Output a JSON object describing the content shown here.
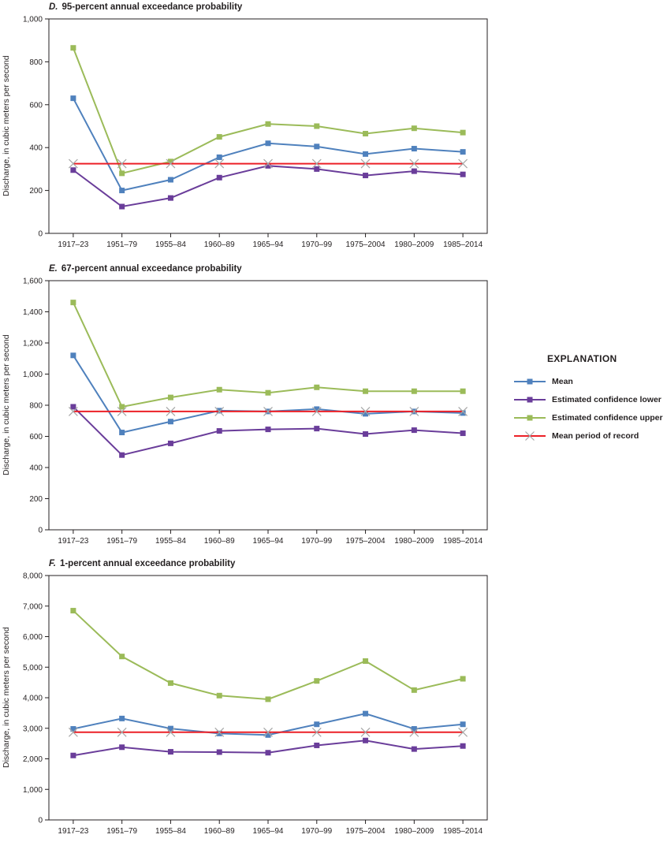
{
  "legend": {
    "title": "EXPLANATION",
    "items": [
      {
        "label": "Mean",
        "color": "#4f81bd",
        "marker": "square"
      },
      {
        "label": "Estimated confidence lower",
        "color": "#6a3d9a",
        "marker": "square"
      },
      {
        "label": "Estimated confidence upper",
        "color": "#9bbb59",
        "marker": "square"
      },
      {
        "label": "Mean period of record",
        "color": "#ec2027",
        "marker": "x",
        "marker_color": "#a6a6a6"
      }
    ]
  },
  "chart_data": [
    {
      "type": "line",
      "panel": "D.",
      "title": "95-percent annual exceedance probability",
      "ylabel": "Discharge, in cubic meters per second",
      "ylim": [
        0,
        1000
      ],
      "yticks": [
        0,
        200,
        400,
        600,
        800,
        1000
      ],
      "ytick_labels": [
        "0",
        "200",
        "400",
        "600",
        "800",
        "1,000"
      ],
      "grid": false,
      "legend_position": "right-outside",
      "categories": [
        "1917–23",
        "1951–79",
        "1955–84",
        "1960–89",
        "1965–94",
        "1970–99",
        "1975–2004",
        "1980–2009",
        "1985–2014"
      ],
      "series": [
        {
          "name": "Mean",
          "color": "#4f81bd",
          "marker": "square",
          "values": [
            630,
            200,
            250,
            355,
            420,
            405,
            370,
            395,
            380
          ]
        },
        {
          "name": "Estimated confidence lower",
          "color": "#6a3d9a",
          "marker": "square",
          "values": [
            295,
            125,
            165,
            260,
            315,
            300,
            270,
            290,
            275
          ]
        },
        {
          "name": "Estimated confidence upper",
          "color": "#9bbb59",
          "marker": "square",
          "values": [
            865,
            280,
            335,
            450,
            510,
            500,
            465,
            490,
            470
          ]
        },
        {
          "name": "Mean period of record",
          "color": "#ec2027",
          "marker": "x",
          "marker_color": "#a6a6a6",
          "values": [
            325,
            325,
            325,
            325,
            325,
            325,
            325,
            325,
            325
          ]
        }
      ]
    },
    {
      "type": "line",
      "panel": "E.",
      "title": "67-percent annual exceedance probability",
      "ylabel": "Discharge, in cubic meters per second",
      "ylim": [
        0,
        1600
      ],
      "yticks": [
        0,
        200,
        400,
        600,
        800,
        1000,
        1200,
        1400,
        1600
      ],
      "ytick_labels": [
        "0",
        "200",
        "400",
        "600",
        "800",
        "1,000",
        "1,200",
        "1,400",
        "1,600"
      ],
      "grid": false,
      "legend_position": "right-outside",
      "categories": [
        "1917–23",
        "1951–79",
        "1955–84",
        "1960–89",
        "1965–94",
        "1970–99",
        "1975–2004",
        "1980–2009",
        "1985–2014"
      ],
      "series": [
        {
          "name": "Mean",
          "color": "#4f81bd",
          "marker": "square",
          "values": [
            1120,
            625,
            695,
            765,
            760,
            775,
            745,
            760,
            750
          ]
        },
        {
          "name": "Estimated confidence lower",
          "color": "#6a3d9a",
          "marker": "square",
          "values": [
            790,
            480,
            555,
            635,
            645,
            650,
            615,
            640,
            620
          ]
        },
        {
          "name": "Estimated confidence upper",
          "color": "#9bbb59",
          "marker": "square",
          "values": [
            1460,
            790,
            850,
            900,
            880,
            915,
            890,
            890,
            890
          ]
        },
        {
          "name": "Mean period of record",
          "color": "#ec2027",
          "marker": "x",
          "marker_color": "#a6a6a6",
          "values": [
            760,
            760,
            760,
            760,
            760,
            760,
            760,
            760,
            760
          ]
        }
      ]
    },
    {
      "type": "line",
      "panel": "F.",
      "title": "1-percent annual exceedance probability",
      "ylabel": "Discharge, in cubic meters per second",
      "ylim": [
        0,
        8000
      ],
      "yticks": [
        0,
        1000,
        2000,
        3000,
        4000,
        5000,
        6000,
        7000,
        8000
      ],
      "ytick_labels": [
        "0",
        "1,000",
        "2,000",
        "3,000",
        "4,000",
        "5,000",
        "6,000",
        "7,000",
        "8,000"
      ],
      "grid": false,
      "legend_position": "right-outside",
      "categories": [
        "1917–23",
        "1951–79",
        "1955–84",
        "1960–89",
        "1965–94",
        "1970–99",
        "1975–2004",
        "1980–2009",
        "1985–2014"
      ],
      "series": [
        {
          "name": "Mean",
          "color": "#4f81bd",
          "marker": "square",
          "values": [
            2980,
            3320,
            2990,
            2830,
            2780,
            3130,
            3480,
            2980,
            3130
          ]
        },
        {
          "name": "Estimated confidence lower",
          "color": "#6a3d9a",
          "marker": "square",
          "values": [
            2110,
            2380,
            2230,
            2220,
            2200,
            2440,
            2600,
            2320,
            2420
          ]
        },
        {
          "name": "Estimated confidence upper",
          "color": "#9bbb59",
          "marker": "square",
          "values": [
            6850,
            5350,
            4480,
            4070,
            3950,
            4550,
            5200,
            4250,
            4620
          ]
        },
        {
          "name": "Mean period of record",
          "color": "#ec2027",
          "marker": "x",
          "marker_color": "#a6a6a6",
          "values": [
            2870,
            2870,
            2870,
            2870,
            2870,
            2870,
            2870,
            2870,
            2870
          ]
        }
      ]
    }
  ]
}
